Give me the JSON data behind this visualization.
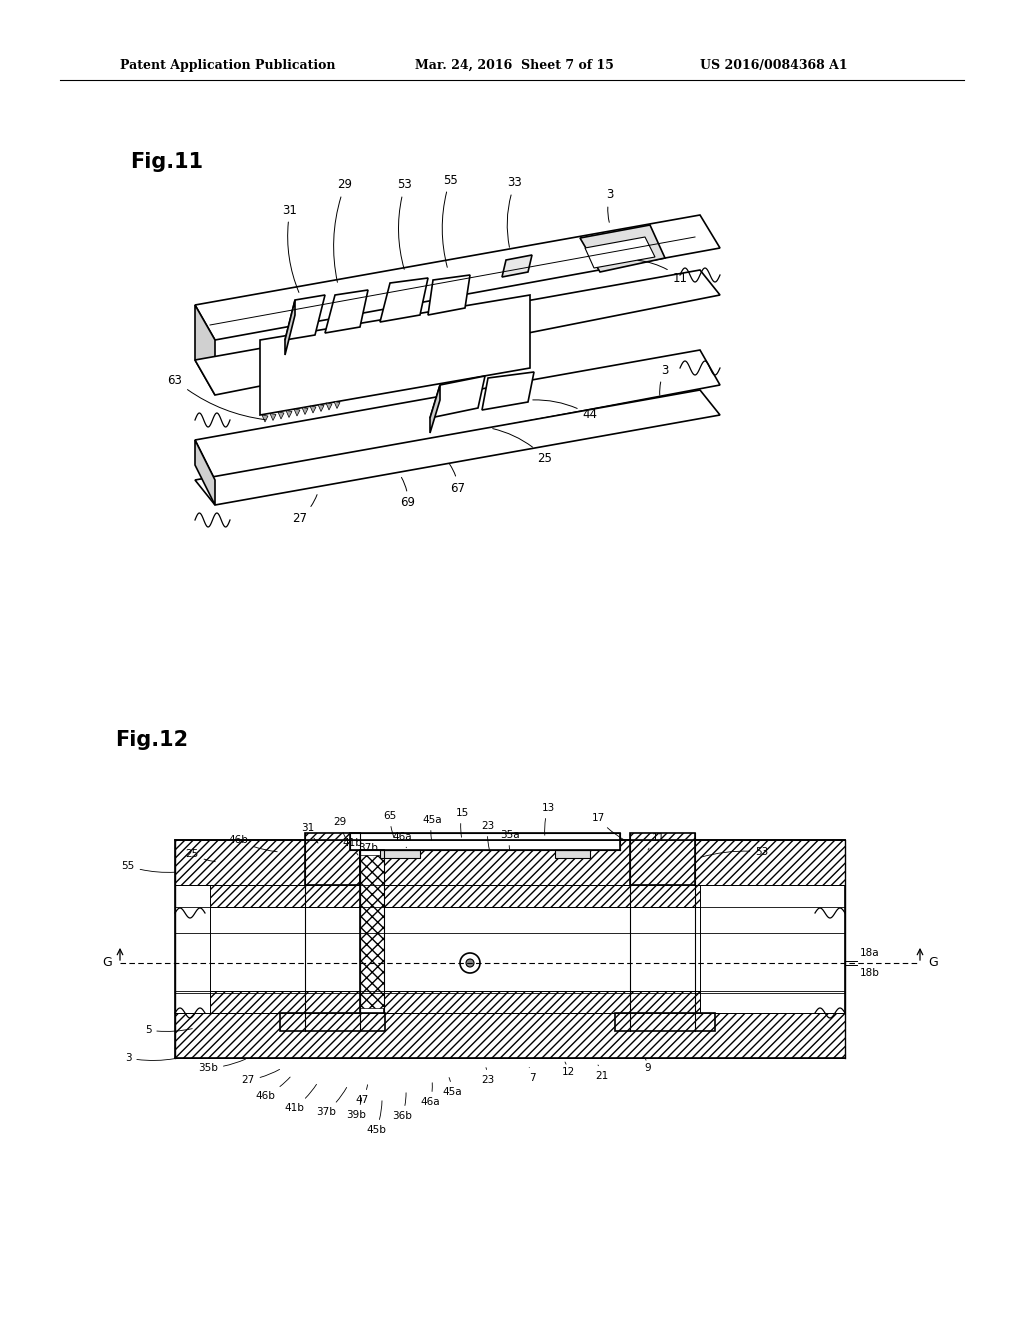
{
  "background_color": "#ffffff",
  "header_text": "Patent Application Publication",
  "header_date": "Mar. 24, 2016  Sheet 7 of 15",
  "header_patent": "US 2016/0084368 A1",
  "fig11_label": "Fig.11",
  "fig12_label": "Fig.12",
  "line_color": "#000000",
  "hatch_color": "#000000",
  "text_color": "#000000"
}
